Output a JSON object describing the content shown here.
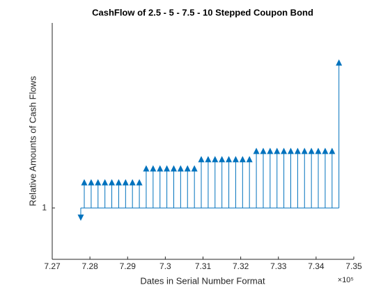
{
  "chart_data": {
    "type": "cashflow-stem",
    "title": "CashFlow of 2.5 - 5 - 7.5 - 10 Stepped Coupon Bond",
    "x_label": "Dates in Serial Number Format",
    "y_label": "Relative Amounts of Cash Flows",
    "x_exponent_label": "×10⁵",
    "baseline": 1,
    "color": "#0072bd",
    "series": [
      {
        "x": [
          727757,
          727850,
          728033,
          728215,
          728398,
          728580,
          728763,
          728946,
          729128,
          729311,
          729493,
          729676,
          729859,
          730041,
          730224,
          730406,
          730589,
          730772,
          730954,
          731137,
          731319,
          731502,
          731685,
          731867,
          732050,
          732232,
          732415,
          732598,
          732780,
          732963,
          733145,
          733328,
          733511,
          733693,
          733876,
          734058,
          734241,
          734424,
          734606
        ],
        "values": [
          0.981,
          1.05,
          1.05,
          1.05,
          1.05,
          1.05,
          1.05,
          1.05,
          1.05,
          1.05,
          1.077,
          1.077,
          1.077,
          1.077,
          1.077,
          1.077,
          1.077,
          1.077,
          1.095,
          1.095,
          1.095,
          1.095,
          1.095,
          1.095,
          1.095,
          1.095,
          1.111,
          1.111,
          1.111,
          1.111,
          1.111,
          1.111,
          1.111,
          1.111,
          1.111,
          1.111,
          1.111,
          1.111,
          1.283
        ]
      }
    ],
    "xlim": [
      727000,
      735000
    ],
    "xticks": [
      {
        "value": 727000,
        "label": "7.27"
      },
      {
        "value": 728000,
        "label": "7.28"
      },
      {
        "value": 729000,
        "label": "7.29"
      },
      {
        "value": 730000,
        "label": "7.3"
      },
      {
        "value": 731000,
        "label": "7.31"
      },
      {
        "value": 732000,
        "label": "7.32"
      },
      {
        "value": 733000,
        "label": "7.33"
      },
      {
        "value": 734000,
        "label": "7.34"
      },
      {
        "value": 735000,
        "label": "7.35"
      }
    ],
    "ylim": [
      0.9,
      1.36
    ],
    "yticks": [
      1
    ]
  }
}
